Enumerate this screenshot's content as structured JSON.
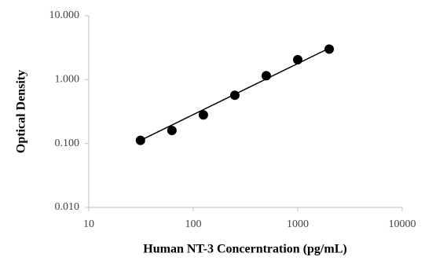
{
  "chart_data": {
    "type": "scatter",
    "x_label": "Human NT-3 Concerntration (pg/mL)",
    "y_label": "Optical Density",
    "series": [
      {
        "color": "#000000",
        "x": [
          31.25,
          62.5,
          125,
          250,
          500,
          1000,
          2000
        ],
        "values": [
          0.112,
          0.16,
          0.28,
          0.57,
          1.15,
          2.05,
          3.0
        ]
      }
    ],
    "trendline": {
      "color": "#000000",
      "x": [
        31.25,
        2000
      ],
      "values": [
        0.112,
        3.1
      ]
    },
    "xlim": [
      10,
      10000
    ],
    "xticks": [
      10,
      100,
      1000,
      10000
    ],
    "ylim": [
      0.01,
      10
    ],
    "yticks": [
      {
        "value": 0.01,
        "label": "0.010"
      },
      {
        "value": 0.1,
        "label": "0.100"
      },
      {
        "value": 1,
        "label": "1.000"
      },
      {
        "value": 10,
        "label": "10.000"
      }
    ],
    "log_x": true,
    "log_y": true,
    "grid": false
  }
}
